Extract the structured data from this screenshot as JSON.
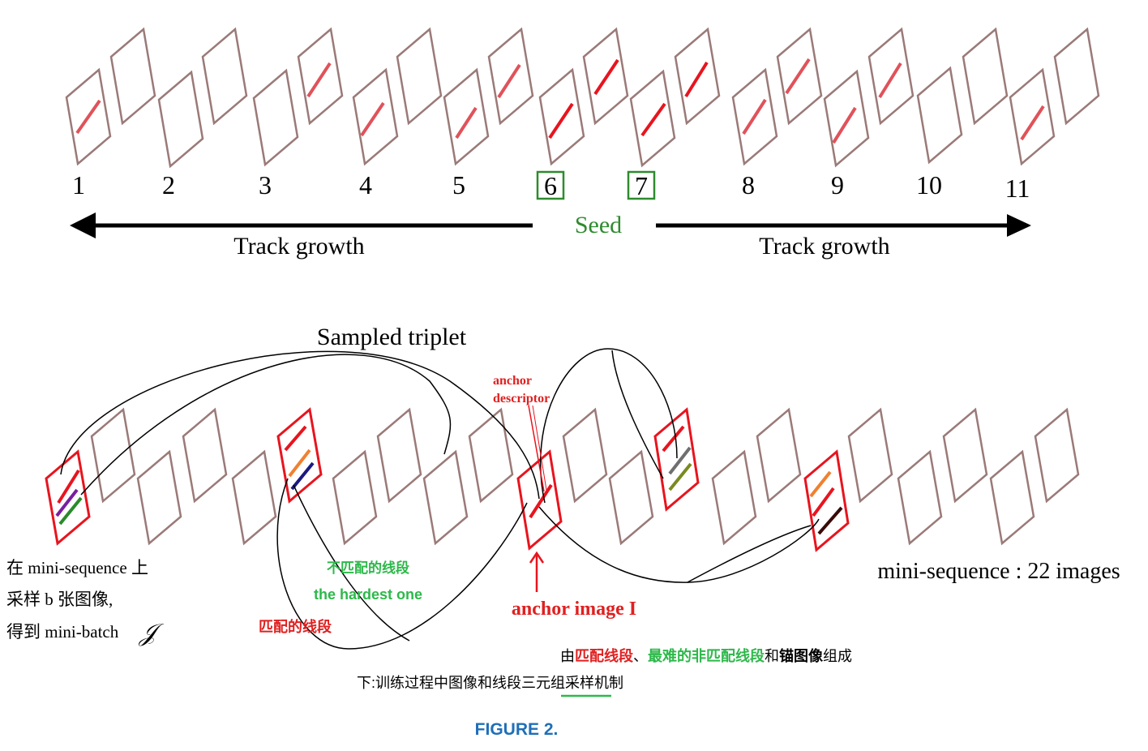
{
  "top": {
    "frame_numbers": [
      "1",
      "2",
      "3",
      "4",
      "5",
      "6",
      "7",
      "8",
      "9",
      "10",
      "11"
    ],
    "seed_frames": [
      "6",
      "7"
    ],
    "seed_label": "Seed",
    "left_arrow_label": "Track growth",
    "right_arrow_label": "Track growth"
  },
  "bottom": {
    "sampled_triplet_label": "Sampled triplet",
    "anchor_descriptor_line1": "anchor",
    "anchor_descriptor_line2": "descriptor",
    "anchor_image_label": "anchor image I",
    "mini_sequence_label": "mini-sequence : 22 images",
    "left_note_line1": "在 mini-sequence 上",
    "left_note_line2": "采样 b 张图像,",
    "left_note_line3": "得到 mini-batch",
    "left_note_symbol": "𝒥",
    "nonmatch_label": "不匹配的线段",
    "hardest_label": "the hardest one",
    "match_label": "匹配的线段"
  },
  "caption": {
    "composition_prefix": "由",
    "composition_match": "匹配线段",
    "composition_sep": "、",
    "composition_hardest": "最难的非匹配线段",
    "composition_and": "和",
    "composition_anchor": "锚图像",
    "composition_suffix": "组成",
    "mechanism_prefix": "下:训练过程中图像和线段",
    "mechanism_underlined": "三元组",
    "mechanism_suffix": "采样机制",
    "figure_label": "FIGURE 2."
  },
  "colors": {
    "frame": "#9a7a78",
    "selected_frame": "#e8141e",
    "seed_green": "#2e8b2e",
    "red_text": "#e02020",
    "green_text": "#2db84a",
    "figure_blue": "#1f6fb8"
  }
}
